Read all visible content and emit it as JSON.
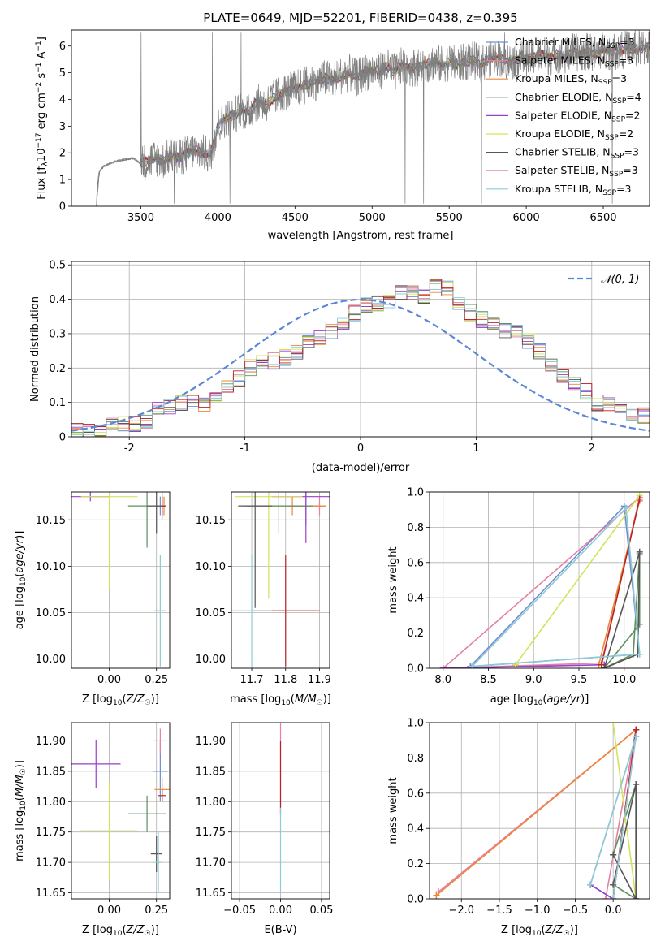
{
  "figure": {
    "title": "PLATE=0649, MJD=52201, FIBERID=0438, z=0.395"
  },
  "chart_data": [
    {
      "id": "spectrum",
      "type": "line",
      "title": "PLATE=0649, MJD=52201, FIBERID=0438, z=0.395",
      "xlabel": "wavelength [Angstrom, rest frame]",
      "ylabel": "Flux [f_λ10^-17 erg cm^-2 s^-1 A^-1]",
      "xlim": [
        3050,
        6800
      ],
      "ylim": [
        0,
        6.6
      ],
      "x_ticks": [
        3500,
        4000,
        4500,
        5000,
        5500,
        6000,
        6500
      ],
      "y_ticks": [
        0,
        1,
        2,
        3,
        4,
        5,
        6
      ],
      "legend_position": "right",
      "data": {
        "x": [
          3210,
          3230,
          3260,
          3300,
          3350,
          3400,
          3450,
          3500,
          3550,
          3600,
          3650,
          3700,
          3750,
          3800,
          3850,
          3900,
          3950,
          4000,
          4050,
          4100,
          4150,
          4200,
          4250,
          4300,
          4350,
          4400,
          4450,
          4500,
          4550,
          4600,
          4650,
          4700,
          4750,
          4800,
          4850,
          4900,
          4950,
          5000,
          5050,
          5100,
          5150,
          5200,
          5250,
          5300,
          5350,
          5400,
          5450,
          5500,
          5550,
          5600,
          5650,
          5700,
          5750,
          5800,
          5850,
          5900,
          5950,
          6000,
          6050,
          6100,
          6150,
          6200,
          6250,
          6300,
          6350,
          6400,
          6450,
          6500,
          6550,
          6600,
          6650,
          6700,
          6750,
          6800
        ],
        "y": [
          0,
          1.3,
          1.5,
          1.6,
          1.7,
          1.75,
          1.8,
          1.6,
          1.7,
          1.8,
          1.7,
          1.9,
          1.8,
          2.0,
          2.1,
          2.0,
          1.9,
          3.0,
          3.3,
          3.4,
          3.6,
          3.5,
          3.9,
          3.8,
          4.0,
          4.2,
          4.3,
          4.4,
          4.5,
          4.6,
          4.7,
          4.8,
          4.7,
          4.9,
          5.0,
          4.8,
          5.0,
          5.1,
          5.1,
          5.2,
          5.0,
          5.3,
          5.2,
          5.2,
          5.3,
          5.4,
          5.3,
          5.4,
          5.3,
          5.4,
          5.5,
          5.3,
          5.5,
          5.6,
          5.5,
          5.4,
          5.6,
          5.5,
          5.6,
          5.7,
          5.6,
          5.7,
          5.6,
          5.8,
          5.7,
          5.8,
          5.7,
          5.9,
          5.8,
          5.8,
          5.9,
          5.9,
          5.9,
          6.0
        ]
      },
      "series": [
        {
          "name": "Chabrier MILES, N_SSP=3",
          "color": "#6f8fd4"
        },
        {
          "name": "Salpeter MILES, N_SSP=3",
          "color": "#e580a8"
        },
        {
          "name": "Kroupa MILES, N_SSP=3",
          "color": "#ef8636"
        },
        {
          "name": "Chabrier ELODIE, N_SSP=4",
          "color": "#5f8f5f"
        },
        {
          "name": "Salpeter ELODIE, N_SSP=2",
          "color": "#9a3fc9"
        },
        {
          "name": "Kroupa ELODIE, N_SSP=2",
          "color": "#d4e25b"
        },
        {
          "name": "Chabrier STELIB, N_SSP=3",
          "color": "#555555"
        },
        {
          "name": "Salpeter STELIB, N_SSP=3",
          "color": "#b52727"
        },
        {
          "name": "Kroupa STELIB, N_SSP=3",
          "color": "#8fcbd6"
        }
      ],
      "legend_labels": [
        "Chabrier MILES, N",
        "Salpeter MILES, N",
        "Kroupa MILES, N",
        "Chabrier ELODIE, N",
        "Salpeter ELODIE, N",
        "Kroupa ELODIE, N",
        "Chabrier STELIB, N",
        "Salpeter STELIB, N",
        "Kroupa STELIB, N"
      ],
      "legend_sub": "SSP",
      "legend_values": [
        "=3",
        "=3",
        "=3",
        "=4",
        "=2",
        "=2",
        "=3",
        "=3",
        "=3"
      ]
    },
    {
      "id": "residuals",
      "type": "step-histogram",
      "xlabel": "(data-model)/error",
      "ylabel": "Normed distribution",
      "xlim": [
        -2.5,
        2.5
      ],
      "ylim": [
        0,
        0.51
      ],
      "x_ticks": [
        -2,
        -1,
        0,
        1,
        2
      ],
      "y_ticks": [
        0.0,
        0.1,
        0.2,
        0.3,
        0.4,
        0.5
      ],
      "grid": true,
      "bin_width": 0.1,
      "bin_start": -2.5,
      "base_values": [
        0.02,
        0.015,
        0.02,
        0.03,
        0.04,
        0.04,
        0.05,
        0.08,
        0.09,
        0.1,
        0.1,
        0.09,
        0.12,
        0.15,
        0.17,
        0.2,
        0.22,
        0.22,
        0.23,
        0.25,
        0.27,
        0.29,
        0.31,
        0.33,
        0.36,
        0.38,
        0.39,
        0.4,
        0.42,
        0.42,
        0.41,
        0.44,
        0.43,
        0.38,
        0.36,
        0.34,
        0.33,
        0.31,
        0.3,
        0.28,
        0.25,
        0.21,
        0.18,
        0.15,
        0.13,
        0.1,
        0.09,
        0.08,
        0.07,
        0.06,
        0.05,
        0.05,
        0.04,
        0.04,
        0.04
      ],
      "reference_curve": {
        "name": "N(0,1)",
        "color": "#5b88d6",
        "style": "dashed"
      },
      "legend_label": "𝒩(0, 1)",
      "legend_position": "top-right"
    },
    {
      "id": "age_vs_Z",
      "type": "errorbar",
      "xlabel": "Z [log₁₀(Z/Z☉)]",
      "ylabel": "age  [log₁₀(age/yr)]",
      "xlim": [
        -0.2,
        0.32
      ],
      "ylim": [
        9.99,
        10.18
      ],
      "x_ticks": [
        0.0,
        0.25
      ],
      "x_tick_labels": [
        "0.00",
        "0.25"
      ],
      "y_ticks": [
        10.0,
        10.05,
        10.1,
        10.15
      ],
      "y_tick_labels": [
        "10.00",
        "10.05",
        "10.10",
        "10.15"
      ],
      "grid": true,
      "points": [
        {
          "x": 0.27,
          "y": 10.165,
          "xerr": 0.02,
          "yerr": 0.01,
          "c": 0
        },
        {
          "x": 0.28,
          "y": 10.165,
          "xerr": 0.02,
          "yerr": 0.015,
          "c": 1
        },
        {
          "x": 0.29,
          "y": 10.165,
          "xerr": 0.01,
          "yerr": 0.01,
          "c": 2
        },
        {
          "x": 0.2,
          "y": 10.165,
          "xerr": 0.1,
          "yerr": 0.045,
          "c": 3
        },
        {
          "x": -0.1,
          "y": 10.175,
          "xerr": 0.1,
          "yerr": 0.005,
          "c": 4
        },
        {
          "x": 0.0,
          "y": 10.175,
          "xerr": 0.15,
          "yerr": 0.1,
          "c": 5
        },
        {
          "x": 0.25,
          "y": 10.165,
          "xerr": 0.05,
          "yerr": 0.03,
          "c": 6
        },
        {
          "x": 0.28,
          "y": 10.165,
          "xerr": 0.01,
          "yerr": 0.01,
          "c": 7
        },
        {
          "x": 0.27,
          "y": 10.052,
          "xerr": 0.03,
          "yerr": 0.06,
          "c": 8
        }
      ]
    },
    {
      "id": "age_vs_mass",
      "type": "errorbar",
      "xlabel": "mass [log₁₀(M/M☉)]",
      "ylabel": "",
      "xlim": [
        11.64,
        11.93
      ],
      "ylim": [
        9.99,
        10.18
      ],
      "x_ticks": [
        11.7,
        11.8,
        11.9
      ],
      "x_tick_labels": [
        "11.7",
        "11.8",
        "11.9"
      ],
      "y_ticks": [
        10.0,
        10.05,
        10.1,
        10.15
      ],
      "y_tick_labels": [
        "10.00",
        "10.05",
        "10.10",
        "10.15"
      ],
      "grid": true,
      "points": [
        {
          "x": 11.86,
          "y": 10.165,
          "xerr": 0.05,
          "yerr": 0.02,
          "c": 0
        },
        {
          "x": 11.9,
          "y": 10.165,
          "xerr": 0.02,
          "yerr": 0.01,
          "c": 1
        },
        {
          "x": 11.82,
          "y": 10.165,
          "xerr": 0.1,
          "yerr": 0.01,
          "c": 2
        },
        {
          "x": 11.78,
          "y": 10.165,
          "xerr": 0.1,
          "yerr": 0.03,
          "c": 3
        },
        {
          "x": 11.86,
          "y": 10.175,
          "xerr": 0.1,
          "yerr": 0.05,
          "c": 4
        },
        {
          "x": 11.75,
          "y": 10.175,
          "xerr": 0.1,
          "yerr": 0.11,
          "c": 5
        },
        {
          "x": 11.71,
          "y": 10.165,
          "xerr": 0.05,
          "yerr": 0.11,
          "c": 6
        },
        {
          "x": 11.8,
          "y": 10.052,
          "xerr": 0.1,
          "yerr": 0.06,
          "c": 7
        },
        {
          "x": 11.7,
          "y": 10.052,
          "xerr": 0.06,
          "yerr": 0.06,
          "c": 8
        }
      ]
    },
    {
      "id": "weight_vs_age",
      "type": "line",
      "xlabel": "age  [log₁₀(age/yr)]",
      "ylabel": "mass weight",
      "xlim": [
        7.85,
        10.28
      ],
      "ylim": [
        0,
        1.0
      ],
      "x_ticks": [
        8.0,
        8.5,
        9.0,
        9.5,
        10.0
      ],
      "x_tick_labels": [
        "8.0",
        "8.5",
        "9.0",
        "9.5",
        "10.0"
      ],
      "y_ticks": [
        0.0,
        0.2,
        0.4,
        0.6,
        0.8,
        1.0
      ],
      "y_tick_labels": [
        "0.0",
        "0.2",
        "0.4",
        "0.6",
        "0.8",
        "1.0"
      ],
      "grid": true,
      "series": [
        {
          "c": 0,
          "x": [
            8.3,
            10.0,
            10.17,
            8.3
          ],
          "y": [
            0.01,
            0.92,
            0.08,
            0.01
          ]
        },
        {
          "c": 1,
          "x": [
            8.0,
            9.75,
            10.17,
            8.0
          ],
          "y": [
            0.0,
            0.03,
            0.97,
            0.0
          ]
        },
        {
          "c": 2,
          "x": [
            9.72,
            10.17,
            9.72
          ],
          "y": [
            0.02,
            0.95,
            0.02
          ]
        },
        {
          "c": 3,
          "x": [
            9.78,
            10.1,
            10.17,
            10.17,
            9.78
          ],
          "y": [
            0.0,
            0.08,
            0.65,
            0.25,
            0.0
          ]
        },
        {
          "c": 4,
          "x": [
            8.0,
            9.78,
            8.0
          ],
          "y": [
            0.0,
            0.02,
            0.0
          ]
        },
        {
          "c": 5,
          "x": [
            8.8,
            10.17,
            8.8
          ],
          "y": [
            0.02,
            0.98,
            0.02
          ]
        },
        {
          "c": 6,
          "x": [
            9.78,
            10.15,
            10.17,
            9.78
          ],
          "y": [
            0.0,
            0.08,
            0.66,
            0.0
          ]
        },
        {
          "c": 7,
          "x": [
            9.75,
            10.17,
            9.75
          ],
          "y": [
            0.02,
            0.96,
            0.02
          ]
        },
        {
          "c": 8,
          "x": [
            8.32,
            10.02,
            10.17,
            8.32
          ],
          "y": [
            0.01,
            0.91,
            0.08,
            0.01
          ]
        }
      ]
    },
    {
      "id": "mass_vs_Z",
      "type": "errorbar",
      "xlabel": "Z [log₁₀(Z/Z☉)]",
      "ylabel": "mass [log₁₀(M/M☉)]",
      "xlim": [
        -0.2,
        0.32
      ],
      "ylim": [
        11.64,
        11.93
      ],
      "x_ticks": [
        0.0,
        0.25
      ],
      "x_tick_labels": [
        "0.00",
        "0.25"
      ],
      "y_ticks": [
        11.65,
        11.7,
        11.75,
        11.8,
        11.85,
        11.9
      ],
      "y_tick_labels": [
        "11.65",
        "11.70",
        "11.75",
        "11.80",
        "11.85",
        "11.90"
      ],
      "grid": true,
      "points": [
        {
          "x": 0.27,
          "y": 11.85,
          "xerr": 0.04,
          "yerr": 0.05,
          "c": 0
        },
        {
          "x": 0.27,
          "y": 11.9,
          "xerr": 0.04,
          "yerr": 0.02,
          "c": 1
        },
        {
          "x": 0.28,
          "y": 11.82,
          "xerr": 0.04,
          "yerr": 0.02,
          "c": 2
        },
        {
          "x": 0.2,
          "y": 11.78,
          "xerr": 0.1,
          "yerr": 0.03,
          "c": 3
        },
        {
          "x": -0.07,
          "y": 11.862,
          "xerr": 0.13,
          "yerr": 0.04,
          "c": 4
        },
        {
          "x": 0.0,
          "y": 11.752,
          "xerr": 0.15,
          "yerr": 0.08,
          "c": 5
        },
        {
          "x": 0.25,
          "y": 11.714,
          "xerr": 0.03,
          "yerr": 0.03,
          "c": 6
        },
        {
          "x": 0.28,
          "y": 11.81,
          "xerr": 0.02,
          "yerr": 0.01,
          "c": 7
        },
        {
          "x": 0.26,
          "y": 11.7,
          "xerr": 0.02,
          "yerr": 0.05,
          "c": 8
        }
      ]
    },
    {
      "id": "mass_vs_EBV",
      "type": "errorbar",
      "xlabel": "E(B-V)",
      "ylabel": "",
      "xlim": [
        -0.06,
        0.06
      ],
      "ylim": [
        11.64,
        11.93
      ],
      "x_ticks": [
        -0.05,
        0.0,
        0.05
      ],
      "x_tick_labels": [
        "−0.05",
        "0.00",
        "0.05"
      ],
      "y_ticks": [
        11.65,
        11.7,
        11.75,
        11.8,
        11.85,
        11.9
      ],
      "y_tick_labels": [
        "11.65",
        "11.70",
        "11.75",
        "11.80",
        "11.85",
        "11.90"
      ],
      "grid": true,
      "points": [
        {
          "x": 0.0,
          "y": 11.86,
          "xerr": 0.0005,
          "yerr": 0.07,
          "c": 1
        },
        {
          "x": 0.0,
          "y": 11.84,
          "xerr": 0.0005,
          "yerr": 0.06,
          "c": 7
        },
        {
          "x": 0.0,
          "y": 11.72,
          "xerr": 0.0005,
          "yerr": 0.07,
          "c": 8
        }
      ]
    },
    {
      "id": "weight_vs_Z",
      "type": "line",
      "xlabel": "Z [log₁₀(Z/Z☉)]",
      "ylabel": "mass weight",
      "xlim": [
        -2.42,
        0.48
      ],
      "ylim": [
        0,
        1.0
      ],
      "x_ticks": [
        -2.0,
        -1.5,
        -1.0,
        -0.5,
        0.0
      ],
      "x_tick_labels": [
        "−2.0",
        "−1.5",
        "−1.0",
        "−0.5",
        "0.0"
      ],
      "y_ticks": [
        0.0,
        0.2,
        0.4,
        0.6,
        0.8,
        1.0
      ],
      "y_tick_labels": [
        "0.0",
        "0.2",
        "0.4",
        "0.6",
        "0.8",
        "1.0"
      ],
      "grid": true,
      "series": [
        {
          "c": 0,
          "x": [
            -0.3,
            0.3,
            0.0,
            -0.3
          ],
          "y": [
            0.08,
            0.92,
            0.0,
            0.08
          ]
        },
        {
          "c": 1,
          "x": [
            -2.3,
            0.3,
            -0.1,
            0.3
          ],
          "y": [
            0.04,
            0.96,
            0.0,
            0.96
          ]
        },
        {
          "c": 2,
          "x": [
            -2.33,
            0.3,
            -2.33
          ],
          "y": [
            0.02,
            0.96,
            0.02
          ]
        },
        {
          "c": 3,
          "x": [
            0.0,
            0.3,
            0.3,
            0.0
          ],
          "y": [
            0.25,
            0.65,
            0.0,
            0.08
          ]
        },
        {
          "c": 4,
          "x": [
            -0.3,
            0.0,
            0.3
          ],
          "y": [
            0.08,
            0.0,
            0.96
          ]
        },
        {
          "c": 5,
          "x": [
            0.0,
            0.3,
            0.0
          ],
          "y": [
            1.0,
            0.0,
            1.0
          ]
        },
        {
          "c": 6,
          "x": [
            0.0,
            0.3,
            0.3,
            0.0
          ],
          "y": [
            0.08,
            0.65,
            0.0,
            0.25
          ]
        },
        {
          "c": 7,
          "x": [
            0.3,
            0.0
          ],
          "y": [
            0.96,
            0.0
          ]
        },
        {
          "c": 8,
          "x": [
            -0.3,
            0.3,
            0.0
          ],
          "y": [
            0.08,
            0.92,
            0.0
          ]
        }
      ]
    }
  ]
}
